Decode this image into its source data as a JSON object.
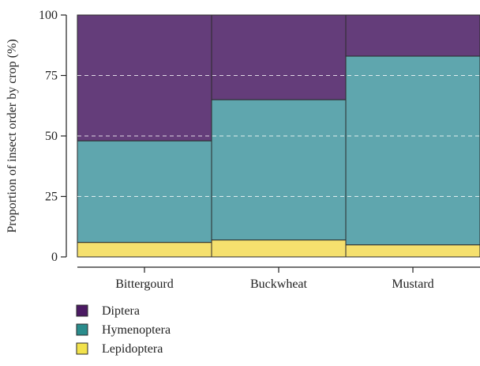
{
  "chart_data": {
    "type": "bar",
    "stacked": true,
    "categories": [
      "Bittergourd",
      "Buckwheat",
      "Mustard"
    ],
    "series": [
      {
        "name": "Lepidoptera",
        "color": "#f5e06e",
        "values": [
          6,
          7,
          5
        ]
      },
      {
        "name": "Hymenoptera",
        "color": "#5fa6ae",
        "values": [
          42,
          58,
          78
        ]
      },
      {
        "name": "Diptera",
        "color": "#643d7a",
        "values": [
          52,
          35,
          17
        ]
      }
    ],
    "legend_order": [
      "Diptera",
      "Hymenoptera",
      "Lepidoptera"
    ],
    "legend_colors": {
      "Diptera": "#4b1a63",
      "Hymenoptera": "#2a8c8c",
      "Lepidoptera": "#f2e24c"
    },
    "ylabel": "Proportion of insect order by crop (%)",
    "xlabel": "",
    "ylim": [
      0,
      100
    ],
    "yticks": [
      0,
      25,
      50,
      75,
      100
    ],
    "grid": true,
    "legend_position": "bottom-left"
  }
}
